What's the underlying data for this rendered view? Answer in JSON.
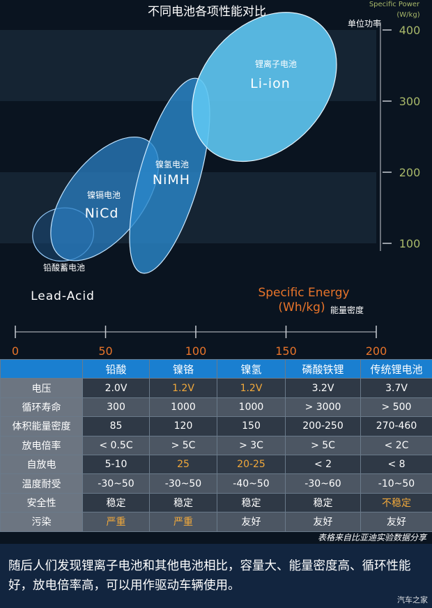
{
  "colors": {
    "background": "#0a1420",
    "band": "#1a2a3a",
    "ellipse_fill": "#2a8fd4",
    "liion_fill": "#5ec6f2",
    "axis_orange": "#e8742a",
    "axis_green": "#a9b96a",
    "header_blue": "#1a7fd0",
    "highlight": "#f2a93b"
  },
  "chart_data": {
    "type": "scatter",
    "title": "不同电池各项性能对比",
    "x_axis": {
      "label_line1": "Specific Energy",
      "label_line2": "(Wh/kg)",
      "label_cn": "能量密度",
      "range": [
        0,
        200
      ],
      "ticks": [
        0,
        50,
        100,
        150,
        200
      ],
      "tick_labels": [
        "0",
        "50",
        "100",
        "150",
        "200"
      ]
    },
    "y_axis": {
      "label_line1": "Specific Power",
      "label_line2": "(W/kg)",
      "label_cn": "单位功率",
      "range": [
        0,
        430
      ],
      "ticks": [
        100,
        200,
        300,
        400
      ],
      "tick_labels": [
        "100",
        "200",
        "300",
        "400"
      ]
    },
    "regions": [
      {
        "name_en": "Lead-Acid",
        "name_cn": "铅酸蓄电池",
        "x_range": [
          10,
          43
        ],
        "y_range": [
          75,
          150
        ]
      },
      {
        "name_en": "NiCd",
        "name_cn": "镍镉电池",
        "x_range": [
          26,
          73
        ],
        "y_range": [
          75,
          250
        ]
      },
      {
        "name_en": "NiMH",
        "name_cn": "镍氢电池",
        "x_range": [
          66,
          105
        ],
        "y_range": [
          55,
          335
        ]
      },
      {
        "name_en": "Li-ion",
        "name_cn": "锂离子电池",
        "x_range": [
          104,
          172
        ],
        "y_range": [
          210,
          430
        ]
      }
    ]
  },
  "table": {
    "corner": "",
    "columns": [
      "铅酸",
      "镍铬",
      "镍氢",
      "磷酸铁锂",
      "传统锂电池"
    ],
    "rows": [
      {
        "label": "电压",
        "cells": [
          "2.0V",
          "1.2V",
          "1.2V",
          "3.2V",
          "3.7V"
        ],
        "highlight": [
          false,
          true,
          true,
          false,
          false
        ]
      },
      {
        "label": "循环寿命",
        "cells": [
          "300",
          "1000",
          "1000",
          "> 3000",
          "> 500"
        ],
        "highlight": [
          false,
          false,
          false,
          false,
          false
        ]
      },
      {
        "label": "体积能量密度",
        "cells": [
          "85",
          "120",
          "150",
          "200-250",
          "270-460"
        ],
        "highlight": [
          false,
          false,
          false,
          false,
          false
        ]
      },
      {
        "label": "放电倍率",
        "cells": [
          "< 0.5C",
          "> 5C",
          "> 3C",
          "> 5C",
          "< 2C"
        ],
        "highlight": [
          false,
          false,
          false,
          false,
          false
        ]
      },
      {
        "label": "自放电",
        "cells": [
          "5-10",
          "25",
          "20-25",
          "< 2",
          "< 8"
        ],
        "highlight": [
          false,
          true,
          true,
          false,
          false
        ]
      },
      {
        "label": "温度耐受",
        "cells": [
          "-30~50",
          "-30~50",
          "-40~50",
          "-30~60",
          "-10~50"
        ],
        "highlight": [
          false,
          false,
          false,
          false,
          false
        ]
      },
      {
        "label": "安全性",
        "cells": [
          "稳定",
          "稳定",
          "稳定",
          "稳定",
          "不稳定"
        ],
        "highlight": [
          false,
          false,
          false,
          false,
          true
        ]
      },
      {
        "label": "污染",
        "cells": [
          "严重",
          "严重",
          "友好",
          "友好",
          "友好"
        ],
        "highlight": [
          true,
          true,
          false,
          false,
          false
        ]
      }
    ]
  },
  "source_note": "表格来自比亚迪实验数据分享",
  "summary": "随后人们发现锂离子电池和其他电池相比，容量大、能量密度高、循环性能好，放电倍率高，可以用作驱动车辆使用。",
  "watermark": "汽车之家"
}
